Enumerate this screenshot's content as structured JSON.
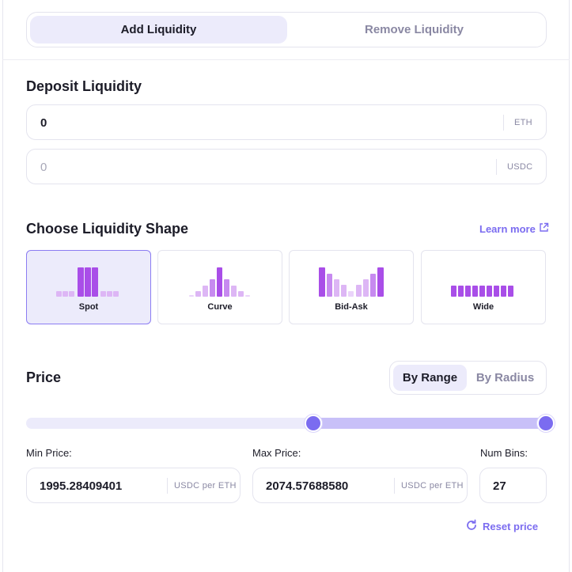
{
  "tabs": {
    "add": "Add Liquidity",
    "remove": "Remove Liquidity"
  },
  "deposit": {
    "title": "Deposit Liquidity",
    "eth_value": "0",
    "eth_unit": "ETH",
    "usdc_placeholder": "0",
    "usdc_unit": "USDC"
  },
  "shape": {
    "title": "Choose Liquidity Shape",
    "learn_more": "Learn more",
    "options": [
      {
        "label": "Spot",
        "selected": true
      },
      {
        "label": "Curve",
        "selected": false
      },
      {
        "label": "Bid-Ask",
        "selected": false
      },
      {
        "label": "Wide",
        "selected": false
      }
    ]
  },
  "price": {
    "title": "Price",
    "by_range": "By Range",
    "by_radius": "By Radius",
    "min_label": "Min Price:",
    "max_label": "Max Price:",
    "bins_label": "Num Bins:",
    "min_value": "1995.28409401",
    "max_value": "2074.57688580",
    "unit": "USDC per ETH",
    "bins_value": "27",
    "reset": "Reset price"
  },
  "colors": {
    "accent": "#7b6cf0",
    "active_bg": "#ecebfb",
    "bar_dark": "#a94ee8",
    "bar_light": "#ddb6f5"
  }
}
